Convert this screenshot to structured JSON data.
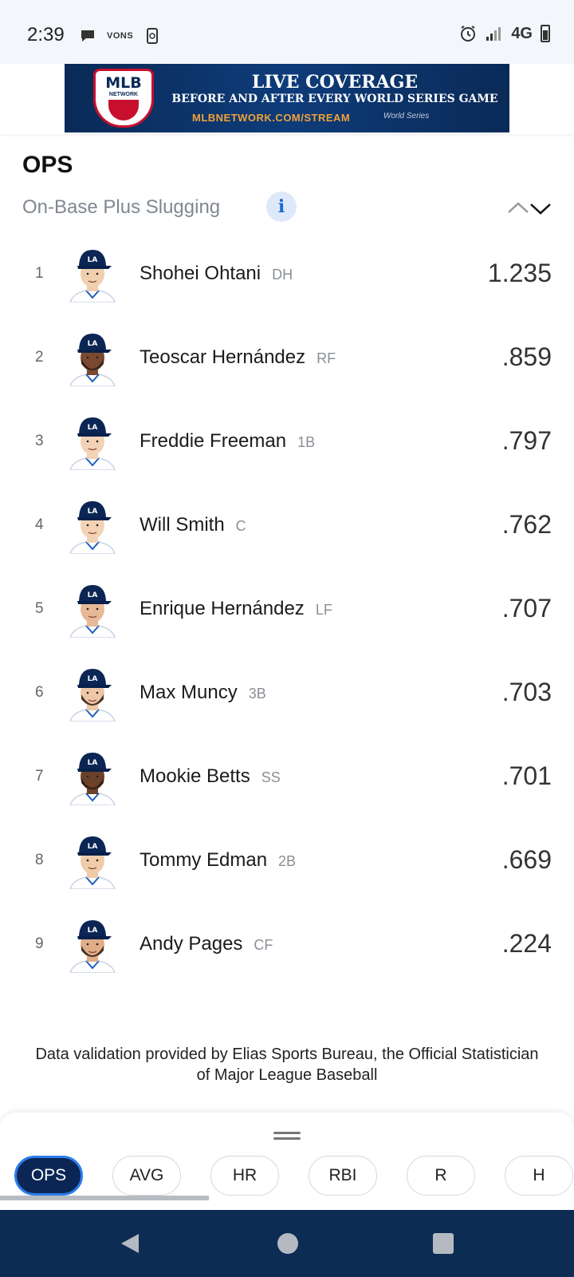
{
  "status_bar": {
    "time": "2:39",
    "network": "4G",
    "left_icons": [
      "chat-bubble-icon",
      "vons-icon",
      "screen-rotate-icon"
    ],
    "vons_label": "VONS",
    "right_icons": [
      "alarm-icon",
      "signal-icon",
      "battery-icon"
    ]
  },
  "ad": {
    "logo_text": "MLB",
    "logo_sub": "NETWORK",
    "title": "LIVE COVERAGE",
    "subtitle": "BEFORE AND AFTER EVERY WORLD SERIES GAME",
    "url": "MLBNETWORK.COM/STREAM",
    "ws_mark": "World Series"
  },
  "section": {
    "title": "OPS",
    "subtitle": "On-Base Plus Slugging",
    "info_glyph": "i"
  },
  "players": [
    {
      "rank": "1",
      "name": "Shohei Ohtani",
      "pos": "DH",
      "stat": "1.235",
      "skin": "#f1cfae",
      "beard": false
    },
    {
      "rank": "2",
      "name": "Teoscar Hernández",
      "pos": "RF",
      "stat": ".859",
      "skin": "#7a4a30",
      "beard": true
    },
    {
      "rank": "3",
      "name": "Freddie Freeman",
      "pos": "1B",
      "stat": ".797",
      "skin": "#f3d2b5",
      "beard": false
    },
    {
      "rank": "4",
      "name": "Will Smith",
      "pos": "C",
      "stat": ".762",
      "skin": "#f3d2b5",
      "beard": false
    },
    {
      "rank": "5",
      "name": "Enrique Hernández",
      "pos": "LF",
      "stat": ".707",
      "skin": "#e8b996",
      "beard": false
    },
    {
      "rank": "6",
      "name": "Max Muncy",
      "pos": "3B",
      "stat": ".703",
      "skin": "#efc6a6",
      "beard": true
    },
    {
      "rank": "7",
      "name": "Mookie Betts",
      "pos": "SS",
      "stat": ".701",
      "skin": "#6b4129",
      "beard": true
    },
    {
      "rank": "8",
      "name": "Tommy Edman",
      "pos": "2B",
      "stat": ".669",
      "skin": "#f0cba9",
      "beard": false
    },
    {
      "rank": "9",
      "name": "Andy Pages",
      "pos": "CF",
      "stat": ".224",
      "skin": "#e0ad87",
      "beard": true
    }
  ],
  "footnote": "Data validation provided by Elias Sports Bureau, the Official Statistician of Major League Baseball",
  "chips": [
    {
      "label": "OPS",
      "active": true
    },
    {
      "label": "AVG",
      "active": false
    },
    {
      "label": "HR",
      "active": false
    },
    {
      "label": "RBI",
      "active": false
    },
    {
      "label": "R",
      "active": false
    },
    {
      "label": "H",
      "active": false
    }
  ],
  "colors": {
    "team_blue": "#0b2654",
    "active_border": "#2b7de9",
    "nav_bar": "#0d2c54"
  }
}
